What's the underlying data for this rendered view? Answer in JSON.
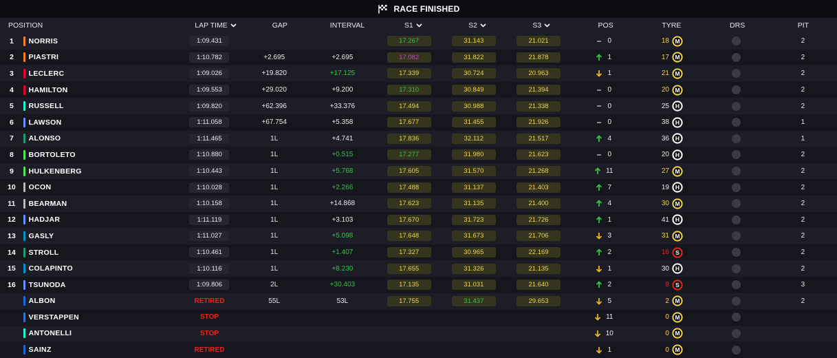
{
  "header": {
    "title": "RACE FINISHED",
    "flag_icon": "checkered-flag-icon"
  },
  "columns": {
    "position": "POSITION",
    "lap_time": "LAP TIME",
    "gap": "GAP",
    "interval": "INTERVAL",
    "s1": "S1",
    "s2": "S2",
    "s3": "S3",
    "pos": "POS",
    "tyre": "TYRE",
    "drs": "DRS",
    "pit": "PIT"
  },
  "colors": {
    "mclaren": "#f58020",
    "ferrari": "#e8002d",
    "mercedes": "#27f4d2",
    "rb": "#6692ff",
    "aston": "#229971",
    "sauber": "#52e252",
    "haas": "#b6babd",
    "alpine": "#0093cc",
    "williams": "#1868db",
    "redbull": "#3671c6",
    "sector_green": "#35c444",
    "sector_yellow": "#f0d34a",
    "sector_purple": "#c146d8",
    "retired_red": "#e5271c",
    "medium_tyre": "#f0d34a",
    "soft_tyre": "#e5271c",
    "hard_tyre": "#ffffff"
  },
  "rows": [
    {
      "position": "1",
      "team": "mclaren",
      "name": "NORRIS",
      "lap": "1:09.431",
      "lap_status": "",
      "gap": "",
      "interval": "",
      "interval_color": "white",
      "s1": "17.267",
      "s1c": "green",
      "s2": "31.143",
      "s2c": "yellow",
      "s3": "21.021",
      "s3c": "yellow",
      "change_dir": "same",
      "change": "0",
      "tyre_age": "18",
      "tyre_compound": "M",
      "tyre_color": "medium",
      "pit": "2"
    },
    {
      "position": "2",
      "team": "mclaren",
      "name": "PIASTRI",
      "lap": "1:10.782",
      "lap_status": "",
      "gap": "+2.695",
      "interval": "+2.695",
      "interval_color": "white",
      "s1": "17.082",
      "s1c": "purple",
      "s2": "31.822",
      "s2c": "yellow",
      "s3": "21.878",
      "s3c": "yellow",
      "change_dir": "up",
      "change": "1",
      "tyre_age": "17",
      "tyre_compound": "M",
      "tyre_color": "medium",
      "pit": "2"
    },
    {
      "position": "3",
      "team": "ferrari",
      "name": "LECLERC",
      "lap": "1:09.026",
      "lap_status": "",
      "gap": "+19.820",
      "interval": "+17.125",
      "interval_color": "green",
      "s1": "17.339",
      "s1c": "yellow",
      "s2": "30.724",
      "s2c": "yellow",
      "s3": "20.963",
      "s3c": "yellow",
      "change_dir": "down",
      "change": "1",
      "tyre_age": "21",
      "tyre_compound": "M",
      "tyre_color": "medium",
      "pit": "2"
    },
    {
      "position": "4",
      "team": "ferrari",
      "name": "HAMILTON",
      "lap": "1:09.553",
      "lap_status": "",
      "gap": "+29.020",
      "interval": "+9.200",
      "interval_color": "white",
      "s1": "17.310",
      "s1c": "green",
      "s2": "30.849",
      "s2c": "yellow",
      "s3": "21.394",
      "s3c": "yellow",
      "change_dir": "same",
      "change": "0",
      "tyre_age": "20",
      "tyre_compound": "M",
      "tyre_color": "medium",
      "pit": "2"
    },
    {
      "position": "5",
      "team": "mercedes",
      "name": "RUSSELL",
      "lap": "1:09.820",
      "lap_status": "",
      "gap": "+62.396",
      "interval": "+33.376",
      "interval_color": "white",
      "s1": "17.494",
      "s1c": "yellow",
      "s2": "30.988",
      "s2c": "yellow",
      "s3": "21.338",
      "s3c": "yellow",
      "change_dir": "same",
      "change": "0",
      "tyre_age": "25",
      "tyre_compound": "H",
      "tyre_color": "hard",
      "pit": "2"
    },
    {
      "position": "6",
      "team": "rb",
      "name": "LAWSON",
      "lap": "1:11.058",
      "lap_status": "",
      "gap": "+67.754",
      "interval": "+5.358",
      "interval_color": "white",
      "s1": "17.677",
      "s1c": "yellow",
      "s2": "31.455",
      "s2c": "yellow",
      "s3": "21.926",
      "s3c": "yellow",
      "change_dir": "same",
      "change": "0",
      "tyre_age": "38",
      "tyre_compound": "H",
      "tyre_color": "hard",
      "pit": "1"
    },
    {
      "position": "7",
      "team": "aston",
      "name": "ALONSO",
      "lap": "1:11.465",
      "lap_status": "",
      "gap": "1L",
      "interval": "+4.741",
      "interval_color": "white",
      "s1": "17.836",
      "s1c": "yellow",
      "s2": "32.112",
      "s2c": "yellow",
      "s3": "21.517",
      "s3c": "yellow",
      "change_dir": "up",
      "change": "4",
      "tyre_age": "36",
      "tyre_compound": "H",
      "tyre_color": "hard",
      "pit": "1"
    },
    {
      "position": "8",
      "team": "sauber",
      "name": "BORTOLETO",
      "lap": "1:10.880",
      "lap_status": "",
      "gap": "1L",
      "interval": "+0.515",
      "interval_color": "green",
      "s1": "17.277",
      "s1c": "green",
      "s2": "31.980",
      "s2c": "yellow",
      "s3": "21.623",
      "s3c": "yellow",
      "change_dir": "same",
      "change": "0",
      "tyre_age": "20",
      "tyre_compound": "H",
      "tyre_color": "hard",
      "pit": "2"
    },
    {
      "position": "9",
      "team": "sauber",
      "name": "HULKENBERG",
      "lap": "1:10.443",
      "lap_status": "",
      "gap": "1L",
      "interval": "+5.768",
      "interval_color": "green",
      "s1": "17.605",
      "s1c": "yellow",
      "s2": "31.570",
      "s2c": "yellow",
      "s3": "21.268",
      "s3c": "yellow",
      "change_dir": "up",
      "change": "11",
      "tyre_age": "27",
      "tyre_compound": "M",
      "tyre_color": "medium",
      "pit": "2"
    },
    {
      "position": "10",
      "team": "haas",
      "name": "OCON",
      "lap": "1:10.028",
      "lap_status": "",
      "gap": "1L",
      "interval": "+2.266",
      "interval_color": "green",
      "s1": "17.488",
      "s1c": "yellow",
      "s2": "31.137",
      "s2c": "yellow",
      "s3": "21.403",
      "s3c": "yellow",
      "change_dir": "up",
      "change": "7",
      "tyre_age": "19",
      "tyre_compound": "H",
      "tyre_color": "hard",
      "pit": "2"
    },
    {
      "position": "11",
      "team": "haas",
      "name": "BEARMAN",
      "lap": "1:10.158",
      "lap_status": "",
      "gap": "1L",
      "interval": "+14.868",
      "interval_color": "white",
      "s1": "17.623",
      "s1c": "yellow",
      "s2": "31.135",
      "s2c": "yellow",
      "s3": "21.400",
      "s3c": "yellow",
      "change_dir": "up",
      "change": "4",
      "tyre_age": "30",
      "tyre_compound": "M",
      "tyre_color": "medium",
      "pit": "2"
    },
    {
      "position": "12",
      "team": "rb",
      "name": "HADJAR",
      "lap": "1:11.119",
      "lap_status": "",
      "gap": "1L",
      "interval": "+3.103",
      "interval_color": "white",
      "s1": "17.670",
      "s1c": "yellow",
      "s2": "31.723",
      "s2c": "yellow",
      "s3": "21.726",
      "s3c": "yellow",
      "change_dir": "up",
      "change": "1",
      "tyre_age": "41",
      "tyre_compound": "H",
      "tyre_color": "hard",
      "pit": "2"
    },
    {
      "position": "13",
      "team": "alpine",
      "name": "GASLY",
      "lap": "1:11.027",
      "lap_status": "",
      "gap": "1L",
      "interval": "+5.098",
      "interval_color": "green",
      "s1": "17.648",
      "s1c": "yellow",
      "s2": "31.673",
      "s2c": "yellow",
      "s3": "21.706",
      "s3c": "yellow",
      "change_dir": "down",
      "change": "3",
      "tyre_age": "31",
      "tyre_compound": "M",
      "tyre_color": "medium",
      "pit": "2"
    },
    {
      "position": "14",
      "team": "aston",
      "name": "STROLL",
      "lap": "1:10.461",
      "lap_status": "",
      "gap": "1L",
      "interval": "+1.407",
      "interval_color": "green",
      "s1": "17.327",
      "s1c": "yellow",
      "s2": "30.965",
      "s2c": "yellow",
      "s3": "22.169",
      "s3c": "yellow",
      "change_dir": "up",
      "change": "2",
      "tyre_age": "16",
      "tyre_compound": "S",
      "tyre_color": "soft",
      "pit": "2"
    },
    {
      "position": "15",
      "team": "alpine",
      "name": "COLAPINTO",
      "lap": "1:10.116",
      "lap_status": "",
      "gap": "1L",
      "interval": "+8.230",
      "interval_color": "green",
      "s1": "17.655",
      "s1c": "yellow",
      "s2": "31.326",
      "s2c": "yellow",
      "s3": "21.135",
      "s3c": "yellow",
      "change_dir": "down",
      "change": "1",
      "tyre_age": "30",
      "tyre_compound": "H",
      "tyre_color": "hard",
      "pit": "2"
    },
    {
      "position": "16",
      "team": "rb",
      "name": "TSUNODA",
      "lap": "1:09.806",
      "lap_status": "",
      "gap": "2L",
      "interval": "+30.403",
      "interval_color": "green",
      "s1": "17.135",
      "s1c": "yellow",
      "s2": "31.031",
      "s2c": "yellow",
      "s3": "21.640",
      "s3c": "yellow",
      "change_dir": "up",
      "change": "2",
      "tyre_age": "8",
      "tyre_compound": "S",
      "tyre_color": "soft",
      "pit": "3"
    },
    {
      "position": "",
      "team": "williams",
      "name": "ALBON",
      "lap": "",
      "lap_status": "RETIRED",
      "gap": "55L",
      "interval": "53L",
      "interval_color": "white",
      "s1": "17.755",
      "s1c": "yellow",
      "s2": "31.437",
      "s2c": "green",
      "s3": "29.653",
      "s3c": "yellow",
      "change_dir": "down",
      "change": "5",
      "tyre_age": "2",
      "tyre_compound": "M",
      "tyre_color": "medium",
      "pit": "2"
    },
    {
      "position": "",
      "team": "redbull",
      "name": "VERSTAPPEN",
      "lap": "",
      "lap_status": "STOP",
      "gap": "",
      "interval": "",
      "interval_color": "white",
      "s1": "",
      "s1c": "yellow",
      "s2": "",
      "s2c": "yellow",
      "s3": "",
      "s3c": "yellow",
      "change_dir": "down",
      "change": "11",
      "tyre_age": "0",
      "tyre_compound": "M",
      "tyre_color": "medium",
      "pit": ""
    },
    {
      "position": "",
      "team": "mercedes",
      "name": "ANTONELLI",
      "lap": "",
      "lap_status": "STOP",
      "gap": "",
      "interval": "",
      "interval_color": "white",
      "s1": "",
      "s1c": "yellow",
      "s2": "",
      "s2c": "yellow",
      "s3": "",
      "s3c": "yellow",
      "change_dir": "down",
      "change": "10",
      "tyre_age": "0",
      "tyre_compound": "M",
      "tyre_color": "medium",
      "pit": ""
    },
    {
      "position": "",
      "team": "williams",
      "name": "SAINZ",
      "lap": "",
      "lap_status": "RETIRED",
      "gap": "",
      "interval": "",
      "interval_color": "white",
      "s1": "",
      "s1c": "yellow",
      "s2": "",
      "s2c": "yellow",
      "s3": "",
      "s3c": "yellow",
      "change_dir": "down",
      "change": "1",
      "tyre_age": "0",
      "tyre_compound": "M",
      "tyre_color": "medium",
      "pit": ""
    }
  ]
}
